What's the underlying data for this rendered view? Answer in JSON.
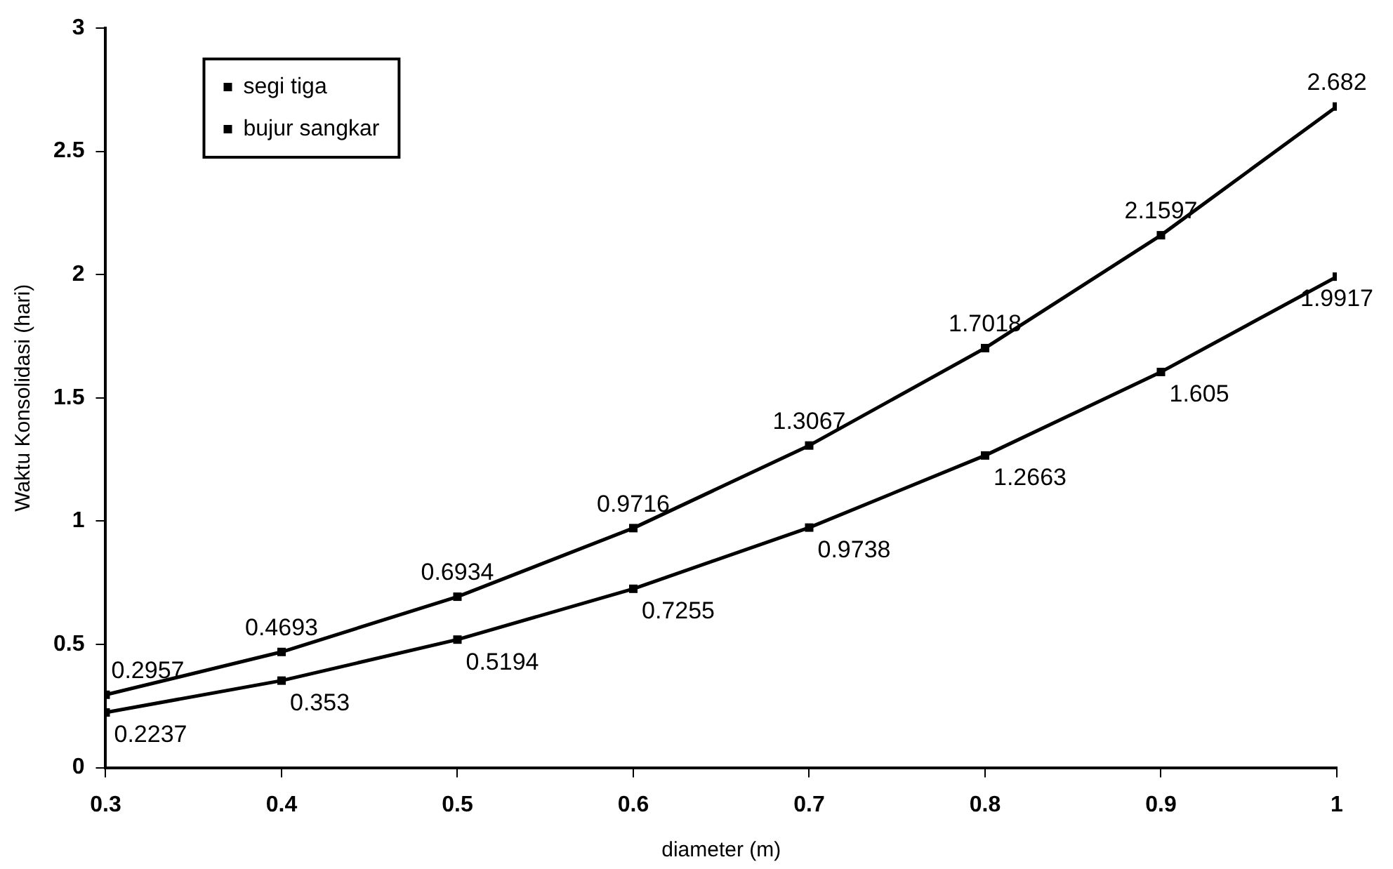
{
  "chart_data": {
    "type": "line",
    "xlabel": "diameter (m)",
    "ylabel": "Waktu Konsolidasi (hari)",
    "x": [
      0.3,
      0.4,
      0.5,
      0.6,
      0.7,
      0.8,
      0.9,
      1
    ],
    "series": [
      {
        "name": "segi tiga",
        "color": "#000000",
        "values": [
          0.2237,
          0.353,
          0.5194,
          0.7255,
          0.9738,
          1.2663,
          1.605,
          1.9917
        ]
      },
      {
        "name": "bujur sangkar",
        "color": "#000000",
        "values": [
          0.2957,
          0.4693,
          0.6934,
          0.9716,
          1.3067,
          1.7018,
          2.1597,
          2.682
        ]
      }
    ],
    "xlim": [
      0.3,
      1
    ],
    "xticks": [
      0.3,
      0.4,
      0.5,
      0.6,
      0.7,
      0.8,
      0.9,
      1
    ],
    "ylim": [
      0,
      3
    ],
    "yticks": [
      0,
      0.5,
      1,
      1.5,
      2,
      2.5,
      3
    ],
    "grid": false,
    "legend": "top left",
    "marker": "square",
    "line_style": "solid",
    "data_labels": true
  }
}
